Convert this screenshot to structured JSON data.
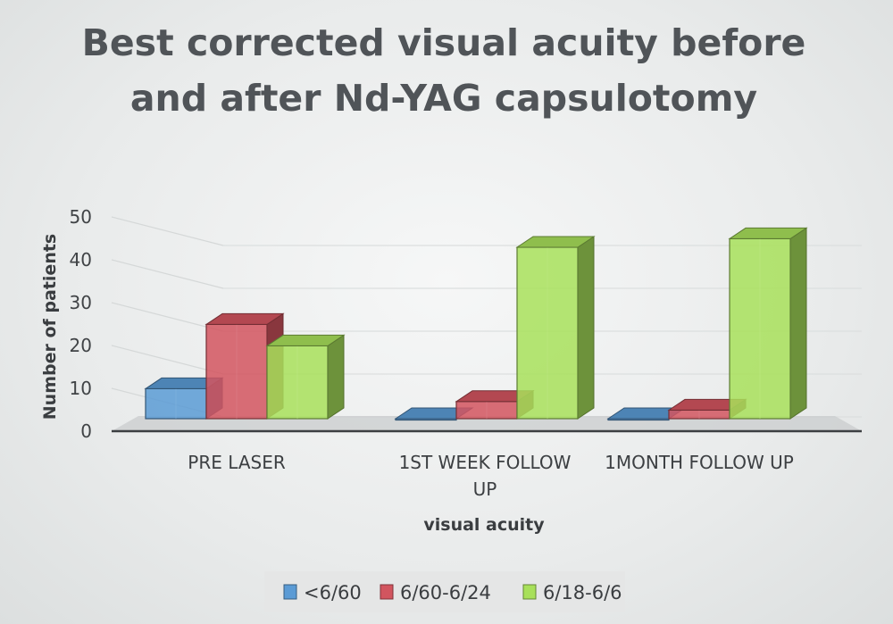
{
  "chart_data": {
    "type": "bar",
    "title_lines": [
      "Best corrected visual acuity before",
      "and after Nd-YAG capsulotomy"
    ],
    "xlabel": "visual acuity",
    "ylabel": "Number of patients",
    "ylim": [
      0,
      50
    ],
    "yticks": [
      "0",
      "10",
      "20",
      "30",
      "40",
      "50"
    ],
    "categories": [
      {
        "lines": [
          "PRE LASER"
        ]
      },
      {
        "lines": [
          "1ST WEEK FOLLOW",
          "UP"
        ]
      },
      {
        "lines": [
          "1MONTH FOLLOW UP"
        ]
      }
    ],
    "series": [
      {
        "name": "<6/60",
        "values": [
          7,
          0,
          0
        ],
        "color": "#5b9bd5"
      },
      {
        "name": "6/60-6/24",
        "values": [
          22,
          4,
          2
        ],
        "color": "#d2555f"
      },
      {
        "name": "6/18-6/6",
        "values": [
          17,
          40,
          42
        ],
        "color": "#a8e05a"
      }
    ],
    "grid": true,
    "legend_position": "bottom",
    "projection": "3d"
  }
}
